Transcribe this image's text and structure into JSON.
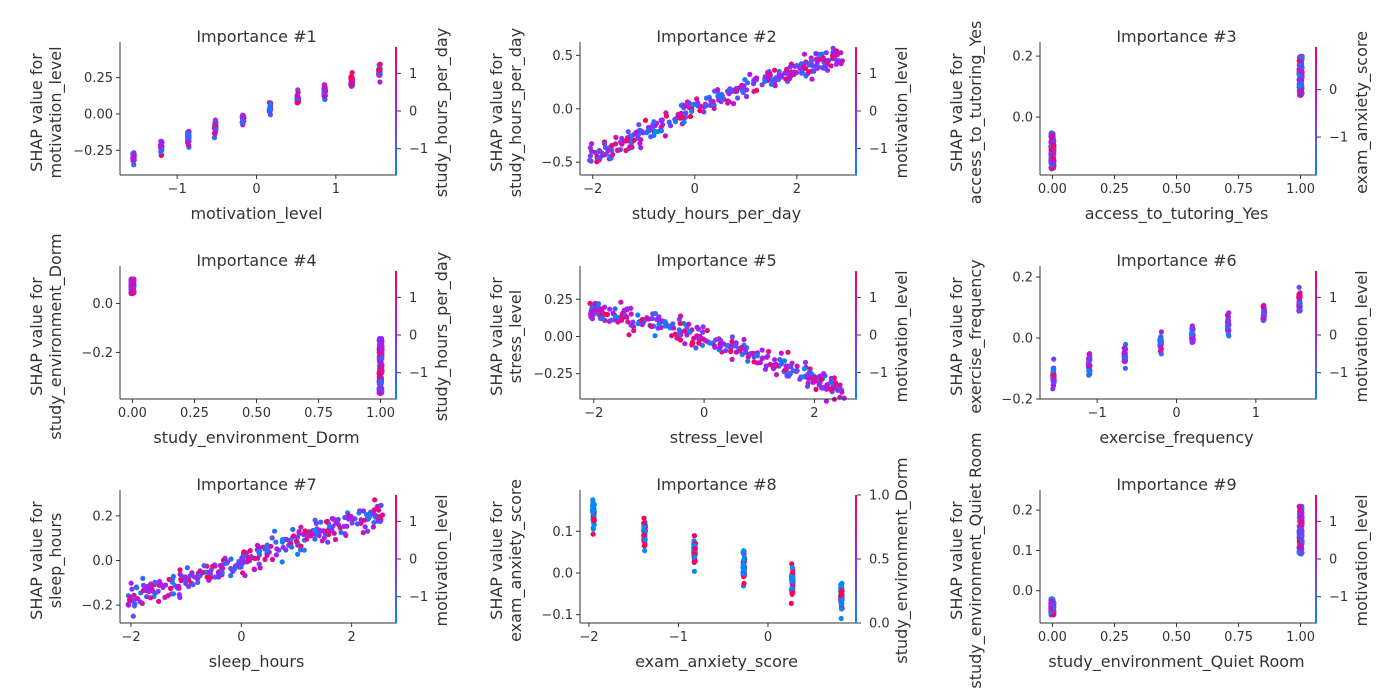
{
  "colors": {
    "low": "#008afb",
    "mid": "#a020ff",
    "high": "#ff0052",
    "axis": "#333333"
  },
  "chart_data": [
    {
      "type": "scatter",
      "title": "Importance #1",
      "xlabel": "motivation_level",
      "ylabel": [
        "SHAP value for",
        "motivation_level"
      ],
      "xlim": [
        -1.72,
        1.72
      ],
      "ylim": [
        -0.42,
        0.44
      ],
      "xticks": [
        -1,
        0,
        1
      ],
      "xticklabels": [
        "−1",
        "0",
        "1"
      ],
      "yticks": [
        -0.25,
        0,
        0.25
      ],
      "yticklabels": [
        "−0.25",
        "0.00",
        "0.25"
      ],
      "colorbar": {
        "label": "study_hours_per_day",
        "range": [
          -1.7,
          1.7
        ],
        "ticks": [
          -1,
          0,
          1
        ],
        "ticklabels": [
          "−1",
          "0",
          "1"
        ]
      },
      "pattern": {
        "kind": "discrete",
        "levels": [
          -1.55,
          -1.2,
          -0.86,
          -0.52,
          -0.17,
          0.17,
          0.52,
          0.86,
          1.2,
          1.55
        ],
        "slope": 0.19,
        "intercept": 0.0,
        "spread": 0.035,
        "n": 300,
        "colorMode": "mixed"
      }
    },
    {
      "type": "scatter",
      "title": "Importance #2",
      "xlabel": "study_hours_per_day",
      "ylabel": [
        "SHAP value for",
        "study_hours_per_day"
      ],
      "xlim": [
        -2.25,
        3.1
      ],
      "ylim": [
        -0.62,
        0.55
      ],
      "xticks": [
        -2,
        0,
        2
      ],
      "xticklabels": [
        "−2",
        "0",
        "2"
      ],
      "yticks": [
        -0.5,
        0,
        0.5
      ],
      "yticklabels": [
        "−0.5",
        "0.0",
        "0.5"
      ],
      "colorbar": {
        "label": "motivation_level",
        "range": [
          -1.7,
          1.7
        ],
        "ticks": [
          -1,
          0,
          1
        ],
        "ticklabels": [
          "−1",
          "0",
          "1"
        ]
      },
      "pattern": {
        "kind": "continuous",
        "xmin": -2.1,
        "xmax": 2.9,
        "slope": 0.205,
        "intercept": 0.0,
        "curve": -0.012,
        "spread": 0.05,
        "n": 300,
        "colorMode": "mixed"
      }
    },
    {
      "type": "scatter",
      "title": "Importance #3",
      "xlabel": "access_to_tutoring_Yes",
      "ylabel": [
        "SHAP value for",
        "access_to_tutoring_Yes"
      ],
      "xlim": [
        -0.05,
        1.05
      ],
      "ylim": [
        -0.19,
        0.22
      ],
      "xticks": [
        0,
        0.25,
        0.5,
        0.75,
        1
      ],
      "xticklabels": [
        "0.00",
        "0.25",
        "0.50",
        "0.75",
        "1.00"
      ],
      "yticks": [
        0,
        0.2
      ],
      "yticklabels": [
        "0.0",
        "0.2"
      ],
      "colorbar": {
        "label": "exam_anxiety_score",
        "range": [
          -1.8,
          0.9
        ],
        "ticks": [
          -1,
          0
        ],
        "ticklabels": [
          "−1",
          "0"
        ]
      },
      "pattern": {
        "kind": "binary",
        "groups": [
          {
            "x": 0,
            "ymin": -0.17,
            "ymax": -0.05
          },
          {
            "x": 1,
            "ymin": 0.07,
            "ymax": 0.2
          }
        ],
        "n": 300,
        "colorMode": "mixed"
      }
    },
    {
      "type": "scatter",
      "title": "Importance #4",
      "xlabel": "study_environment_Dorm",
      "ylabel": [
        "SHAP value for",
        "study_environment_Dorm"
      ],
      "xlim": [
        -0.05,
        1.05
      ],
      "ylim": [
        -0.39,
        0.12
      ],
      "xticks": [
        0,
        0.25,
        0.5,
        0.75,
        1
      ],
      "xticklabels": [
        "0.00",
        "0.25",
        "0.50",
        "0.75",
        "1.00"
      ],
      "yticks": [
        -0.2,
        0
      ],
      "yticklabels": [
        "−0.2",
        "0.0"
      ],
      "colorbar": {
        "label": "study_hours_per_day",
        "range": [
          -1.7,
          1.7
        ],
        "ticks": [
          -1,
          0,
          1
        ],
        "ticklabels": [
          "−1",
          "0",
          "1"
        ]
      },
      "pattern": {
        "kind": "binary",
        "groups": [
          {
            "x": 0,
            "ymin": 0.04,
            "ymax": 0.1
          },
          {
            "x": 1,
            "ymin": -0.37,
            "ymax": -0.14
          }
        ],
        "n": 300,
        "colorMode": "mixed"
      }
    },
    {
      "type": "scatter",
      "title": "Importance #5",
      "xlabel": "stress_level",
      "ylabel": [
        "SHAP value for",
        "stress_level"
      ],
      "xlim": [
        -2.25,
        2.7
      ],
      "ylim": [
        -0.42,
        0.42
      ],
      "xticks": [
        -2,
        0,
        2
      ],
      "xticklabels": [
        "−2",
        "0",
        "2"
      ],
      "yticks": [
        -0.25,
        0,
        0.25
      ],
      "yticklabels": [
        "−0.25",
        "0.00",
        "0.25"
      ],
      "colorbar": {
        "label": "motivation_level",
        "range": [
          -1.7,
          1.7
        ],
        "ticks": [
          -1,
          0,
          1
        ],
        "ticklabels": [
          "−1",
          "0",
          "1"
        ]
      },
      "pattern": {
        "kind": "continuous",
        "xmin": -2.1,
        "xmax": 2.55,
        "slope": -0.115,
        "intercept": -0.01,
        "curve": -0.012,
        "spread": 0.035,
        "n": 300,
        "colorMode": "mixed"
      }
    },
    {
      "type": "scatter",
      "title": "Importance #6",
      "xlabel": "exercise_frequency",
      "ylabel": [
        "SHAP value for",
        "exercise_frequency"
      ],
      "xlim": [
        -1.72,
        1.72
      ],
      "ylim": [
        -0.2,
        0.21
      ],
      "xticks": [
        -1,
        0,
        1
      ],
      "xticklabels": [
        "−1",
        "0",
        "1"
      ],
      "yticks": [
        -0.2,
        0,
        0.2
      ],
      "yticklabels": [
        "−0.2",
        "0.0",
        "0.2"
      ],
      "colorbar": {
        "label": "motivation_level",
        "range": [
          -1.7,
          1.7
        ],
        "ticks": [
          -1,
          0,
          1
        ],
        "ticklabels": [
          "−1",
          "0",
          "1"
        ]
      },
      "pattern": {
        "kind": "discrete",
        "levels": [
          -1.55,
          -1.1,
          -0.65,
          -0.2,
          0.2,
          0.65,
          1.1,
          1.55
        ],
        "slope": 0.078,
        "intercept": -0.005,
        "spread": 0.028,
        "n": 260,
        "colorMode": "mixed"
      }
    },
    {
      "type": "scatter",
      "title": "Importance #7",
      "xlabel": "sleep_hours",
      "ylabel": [
        "SHAP value for",
        "sleep_hours"
      ],
      "xlim": [
        -2.2,
        2.75
      ],
      "ylim": [
        -0.28,
        0.28
      ],
      "xticks": [
        -2,
        0,
        2
      ],
      "xticklabels": [
        "−2",
        "0",
        "2"
      ],
      "yticks": [
        -0.2,
        0,
        0.2
      ],
      "yticklabels": [
        "−0.2",
        "0.0",
        "0.2"
      ],
      "colorbar": {
        "label": "motivation_level",
        "range": [
          -1.7,
          1.7
        ],
        "ticks": [
          -1,
          0,
          1
        ],
        "ticklabels": [
          "−1",
          "0",
          "1"
        ]
      },
      "pattern": {
        "kind": "continuous",
        "xmin": -2.1,
        "xmax": 2.6,
        "slope": 0.085,
        "intercept": 0.0,
        "curve": 0.0,
        "spread": 0.03,
        "n": 300,
        "colorMode": "mixed"
      }
    },
    {
      "type": "scatter",
      "title": "Importance #8",
      "xlabel": "exam_anxiety_score",
      "ylabel": [
        "SHAP value for",
        "exam_anxiety_score"
      ],
      "xlim": [
        -2.1,
        0.95
      ],
      "ylim": [
        -0.12,
        0.18
      ],
      "xticks": [
        -2,
        -1,
        0
      ],
      "xticklabels": [
        "−2",
        "−1",
        "0"
      ],
      "yticks": [
        -0.1,
        0,
        0.1
      ],
      "yticklabels": [
        "−0.1",
        "0.0",
        "0.1"
      ],
      "colorbar": {
        "label": "study_environment_Dorm",
        "range": [
          0,
          1
        ],
        "ticks": [
          0,
          0.5,
          1
        ],
        "ticklabels": [
          "0.0",
          "0.5",
          "1.0"
        ]
      },
      "pattern": {
        "kind": "discrete",
        "levels": [
          -1.95,
          -1.38,
          -0.82,
          -0.27,
          0.27,
          0.82
        ],
        "slope": -0.072,
        "intercept": -0.001,
        "spread": 0.03,
        "n": 260,
        "colorMode": "binary"
      }
    },
    {
      "type": "scatter",
      "title": "Importance #9",
      "xlabel": "study_environment_Quiet Room",
      "ylabel": [
        "SHAP value for",
        "study_environment_Quiet Room"
      ],
      "xlim": [
        -0.05,
        1.05
      ],
      "ylim": [
        -0.08,
        0.23
      ],
      "xticks": [
        0,
        0.25,
        0.5,
        0.75,
        1
      ],
      "xticklabels": [
        "0.00",
        "0.25",
        "0.50",
        "0.75",
        "1.00"
      ],
      "yticks": [
        0,
        0.1,
        0.2
      ],
      "yticklabels": [
        "0.0",
        "0.1",
        "0.2"
      ],
      "colorbar": {
        "label": "motivation_level",
        "range": [
          -1.7,
          1.7
        ],
        "ticks": [
          -1,
          0,
          1
        ],
        "ticklabels": [
          "−1",
          "0",
          "1"
        ]
      },
      "pattern": {
        "kind": "binary",
        "groups": [
          {
            "x": 0,
            "ymin": -0.06,
            "ymax": -0.02
          },
          {
            "x": 1,
            "ymin": 0.09,
            "ymax": 0.21
          }
        ],
        "n": 240,
        "colorMode": "mixed"
      }
    }
  ]
}
